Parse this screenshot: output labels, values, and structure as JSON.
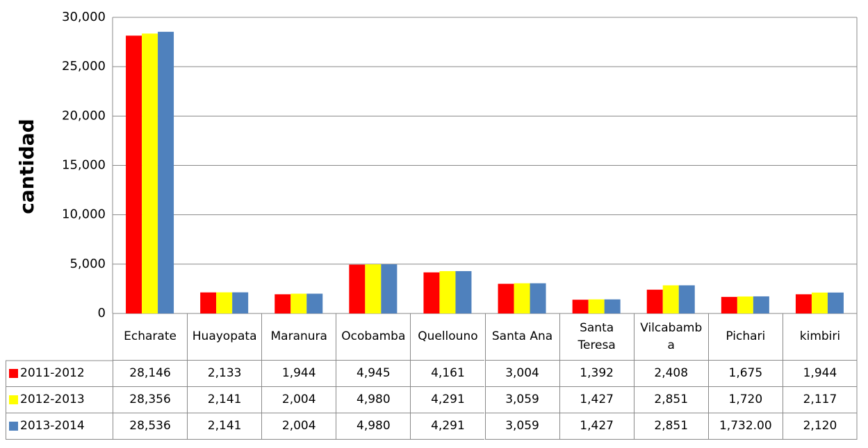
{
  "chart_data": {
    "type": "bar",
    "y_label": "cantidad",
    "categories": [
      "Echarate",
      "Huayopata",
      "Maranura",
      "Ocobamba",
      "Quellouno",
      "Santa Ana",
      "Santa Teresa",
      "Vilcabamba",
      "Pichari",
      "kimbiri"
    ],
    "series": [
      {
        "name": "2011-2012",
        "color": "#ff0000",
        "values": [
          28146,
          2133,
          1944,
          4945,
          4161,
          3004,
          1392,
          2408,
          1675,
          1944
        ],
        "value_labels": [
          "28,146",
          "2,133",
          "1,944",
          "4,945",
          "4,161",
          "3,004",
          "1,392",
          "2,408",
          "1,675",
          "1,944"
        ]
      },
      {
        "name": "2012-2013",
        "color": "#ffff00",
        "values": [
          28356,
          2141,
          2004,
          4980,
          4291,
          3059,
          1427,
          2851,
          1720,
          2117
        ],
        "value_labels": [
          "28,356",
          "2,141",
          "2,004",
          "4,980",
          "4,291",
          "3,059",
          "1,427",
          "2,851",
          "1,720",
          "2,117"
        ]
      },
      {
        "name": "2013-2014",
        "color": "#4f81bd",
        "values": [
          28536,
          2141,
          2004,
          4980,
          4291,
          3059,
          1427,
          2851,
          1732,
          2120
        ],
        "value_labels": [
          "28,536",
          "2,141",
          "2,004",
          "4,980",
          "4,291",
          "3,059",
          "1,427",
          "2,851",
          "1,732.00",
          "2,120"
        ]
      }
    ],
    "ylim": [
      0,
      30000
    ],
    "yticks": [
      0,
      {
        "value": 5000,
        "label": "5,000"
      },
      {
        "value": 10000,
        "label": "10,000"
      },
      {
        "value": 15000,
        "label": "15,000"
      },
      {
        "value": 20000,
        "label": "20,000"
      },
      {
        "value": 25000,
        "label": "25,000"
      },
      {
        "value": 30000,
        "label": "30,000"
      }
    ],
    "grid": true
  }
}
